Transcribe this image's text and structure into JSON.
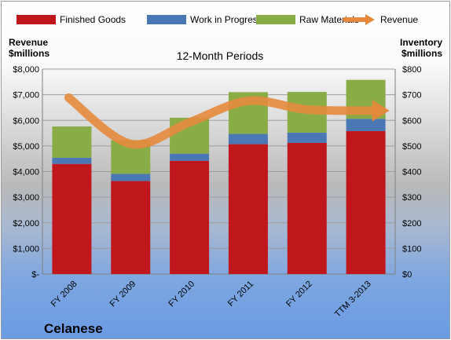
{
  "chart_data": {
    "type": "bar",
    "title": "12-Month Periods",
    "left_axis_label": [
      "Revenue",
      "$millions"
    ],
    "right_axis_label": [
      "Inventory",
      "$millions"
    ],
    "company": "Celanese",
    "categories": [
      "FY 2008",
      "FY 2009",
      "FY 2010",
      "FY 2011",
      "FY 2012",
      "TTM 3-2013"
    ],
    "left_ticks": [
      "$-",
      "$1,000",
      "$2,000",
      "$3,000",
      "$4,000",
      "$5,000",
      "$6,000",
      "$7,000",
      "$8,000"
    ],
    "right_ticks": [
      "$0",
      "$100",
      "$200",
      "$300",
      "$400",
      "$500",
      "$600",
      "$700",
      "$800"
    ],
    "left_ylim": [
      0,
      8000
    ],
    "right_ylim": [
      0,
      800
    ],
    "stacked": true,
    "legend_position": "top",
    "series": [
      {
        "name": "Finished Goods",
        "color": "#c0171c",
        "axis": "right",
        "values": [
          430,
          363,
          442,
          507,
          512,
          558
        ]
      },
      {
        "name": "Work in Progress",
        "color": "#4a78b5",
        "axis": "right",
        "values": [
          24,
          28,
          28,
          40,
          40,
          48
        ]
      },
      {
        "name": "Raw Materials",
        "color": "#89ac47",
        "axis": "right",
        "values": [
          122,
          131,
          140,
          163,
          159,
          152
        ]
      },
      {
        "name": "Revenue",
        "color": "#e5893c",
        "axis": "left",
        "type": "line",
        "values": [
          6820,
          5080,
          5920,
          6760,
          6420,
          6380
        ]
      }
    ]
  }
}
